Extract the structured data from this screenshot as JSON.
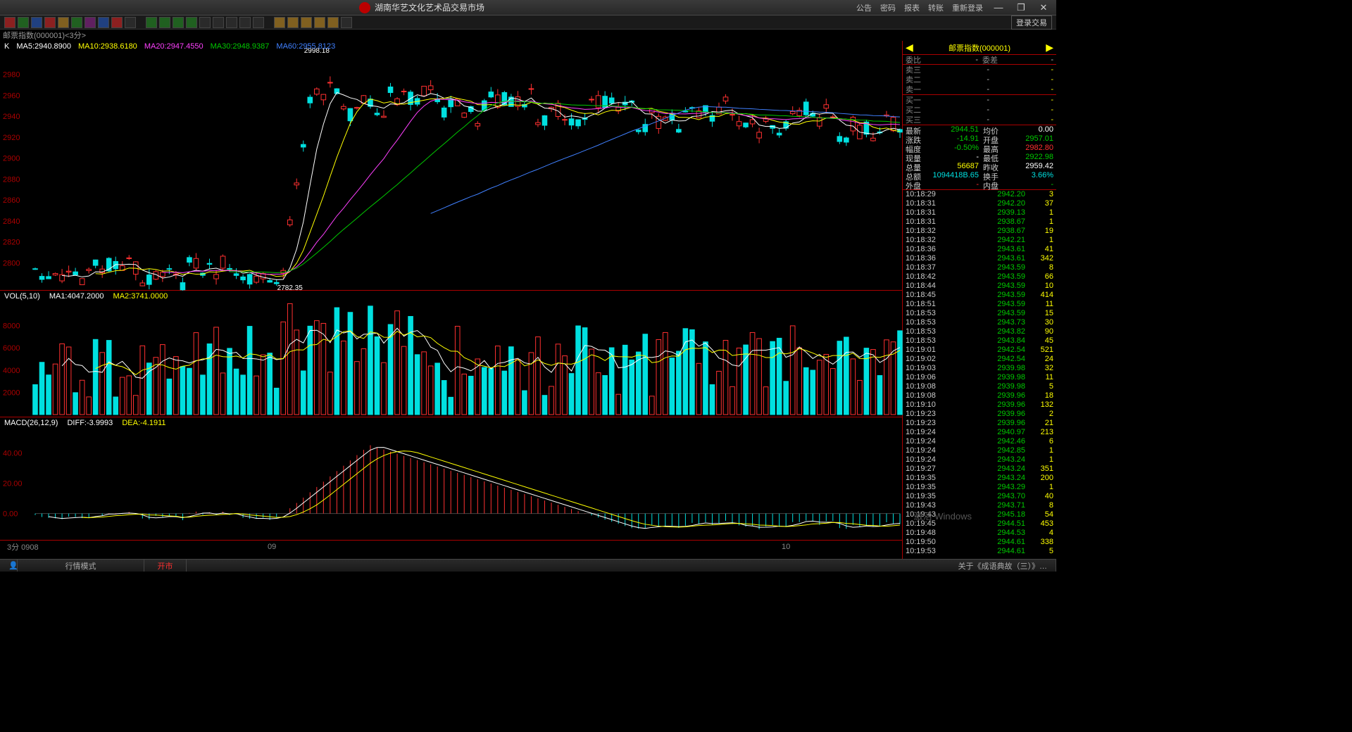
{
  "app": {
    "title": "湖南华艺文化艺术品交易市场",
    "menu": [
      "公告",
      "密码",
      "报表",
      "转账",
      "重新登录"
    ],
    "login_trade": "登录交易"
  },
  "subheader": "邮票指数(000001)<3分>",
  "security": {
    "name": "邮票指数",
    "code": "000001"
  },
  "ma_legend": {
    "prefix": "K",
    "items": [
      {
        "label": "MA5:2940.8900",
        "color": "#ffffff"
      },
      {
        "label": "MA10:2938.6180",
        "color": "#ffff00"
      },
      {
        "label": "MA20:2947.4550",
        "color": "#ff40ff"
      },
      {
        "label": "MA30:2948.9387",
        "color": "#00c800"
      },
      {
        "label": "MA60:2955.8123",
        "color": "#4080ff"
      }
    ],
    "high_label": "2998.18",
    "low_label": "2782.35"
  },
  "kchart": {
    "ylabels": [
      "2980",
      "2960",
      "2940",
      "2920",
      "2900",
      "2880",
      "2860",
      "2840",
      "2820",
      "2800"
    ],
    "ymin": 2780,
    "ymax": 3000,
    "ma5_color": "#ffffff",
    "ma10_color": "#ffff00",
    "ma20_color": "#ff40ff",
    "ma30_color": "#00c800",
    "ma60_color": "#4080ff",
    "up_color": "#00e0e0",
    "down_color": "#ff3030"
  },
  "vchart": {
    "legend": [
      {
        "t": "VOL(5,10)",
        "c": "#ffffff"
      },
      {
        "t": "MA1:4047.2000",
        "c": "#ffffff"
      },
      {
        "t": "MA2:3741.0000",
        "c": "#ffff00"
      }
    ],
    "ylabels": [
      "8000",
      "6000",
      "4000",
      "2000"
    ],
    "ymax": 10000
  },
  "mchart": {
    "legend": [
      {
        "t": "MACD(26,12,9)",
        "c": "#ffffff"
      },
      {
        "t": "DIFF:-3.9993",
        "c": "#ffffff"
      },
      {
        "t": "DEA:-4.1911",
        "c": "#ffff00"
      }
    ],
    "ylabels": [
      "40.00",
      "20.00",
      "0.00"
    ],
    "ymin": -15,
    "ymax": 55
  },
  "xaxis": {
    "left": "3分 0908",
    "mid": "09",
    "right": "10"
  },
  "orderbook": {
    "header": [
      "委比",
      "-",
      "委差",
      "-"
    ],
    "asks": [
      [
        "卖三",
        "-",
        "-"
      ],
      [
        "卖二",
        "-",
        "-"
      ],
      [
        "卖一",
        "-",
        "-"
      ]
    ],
    "bids": [
      [
        "买一",
        "-",
        "-"
      ],
      [
        "买二",
        "-",
        "-"
      ],
      [
        "买三",
        "-",
        "-"
      ]
    ]
  },
  "quotes": [
    [
      "最新",
      "2944.51",
      "green",
      "均价",
      "0.00",
      "white"
    ],
    [
      "涨跌",
      "-14.91",
      "green",
      "开盘",
      "2957.01",
      "green"
    ],
    [
      "幅度",
      "-0.50%",
      "green",
      "最高",
      "2982.80",
      "red"
    ],
    [
      "现量",
      "-",
      "white",
      "最低",
      "2922.98",
      "green"
    ],
    [
      "总量",
      "56687",
      "yellow",
      "昨收",
      "2959.42",
      "white"
    ],
    [
      "总额",
      "1094418B.65",
      "cyan",
      "换手",
      "3.66%",
      "cyan"
    ],
    [
      "外盘",
      "-",
      "red",
      "内盘",
      "-",
      "green"
    ]
  ],
  "ticks": [
    [
      "10:18:29",
      "2942.20",
      3
    ],
    [
      "10:18:31",
      "2942.20",
      37
    ],
    [
      "10:18:31",
      "2939.13",
      1
    ],
    [
      "10:18:31",
      "2938.67",
      1
    ],
    [
      "10:18:32",
      "2938.67",
      19
    ],
    [
      "10:18:32",
      "2942.21",
      1
    ],
    [
      "10:18:36",
      "2943.61",
      41
    ],
    [
      "10:18:36",
      "2943.61",
      342
    ],
    [
      "10:18:37",
      "2943.59",
      8
    ],
    [
      "10:18:42",
      "2943.59",
      66
    ],
    [
      "10:18:44",
      "2943.59",
      10
    ],
    [
      "10:18:45",
      "2943.59",
      414
    ],
    [
      "10:18:51",
      "2943.59",
      11
    ],
    [
      "10:18:53",
      "2943.59",
      15
    ],
    [
      "10:18:53",
      "2943.73",
      30
    ],
    [
      "10:18:53",
      "2943.82",
      90
    ],
    [
      "10:18:53",
      "2943.84",
      45
    ],
    [
      "10:19:01",
      "2942.54",
      521
    ],
    [
      "10:19:02",
      "2942.54",
      24
    ],
    [
      "10:19:03",
      "2939.98",
      32
    ],
    [
      "10:19:06",
      "2939.98",
      11
    ],
    [
      "10:19:08",
      "2939.98",
      5
    ],
    [
      "10:19:08",
      "2939.96",
      18
    ],
    [
      "10:19:10",
      "2939.96",
      132
    ],
    [
      "10:19:23",
      "2939.96",
      2
    ],
    [
      "10:19:23",
      "2939.96",
      21
    ],
    [
      "10:19:24",
      "2940.97",
      213
    ],
    [
      "10:19:24",
      "2942.46",
      6
    ],
    [
      "10:19:24",
      "2942.85",
      1
    ],
    [
      "10:19:24",
      "2943.24",
      1
    ],
    [
      "10:19:27",
      "2943.24",
      351
    ],
    [
      "10:19:35",
      "2943.24",
      200
    ],
    [
      "10:19:35",
      "2943.29",
      1
    ],
    [
      "10:19:35",
      "2943.70",
      40
    ],
    [
      "10:19:43",
      "2943.71",
      8
    ],
    [
      "10:19:43",
      "2945.18",
      54
    ],
    [
      "10:19:45",
      "2944.51",
      453
    ],
    [
      "10:19:48",
      "2944.53",
      4
    ],
    [
      "10:19:50",
      "2944.61",
      338
    ],
    [
      "10:19:53",
      "2944.61",
      5
    ]
  ],
  "status": {
    "mode": "行情模式",
    "market": "开市",
    "right": "关于《成语典故（三）》…",
    "watermark": "激活 Windows"
  },
  "colors": {
    "bg": "#000000",
    "border": "#a00000",
    "grid": "#202020"
  }
}
